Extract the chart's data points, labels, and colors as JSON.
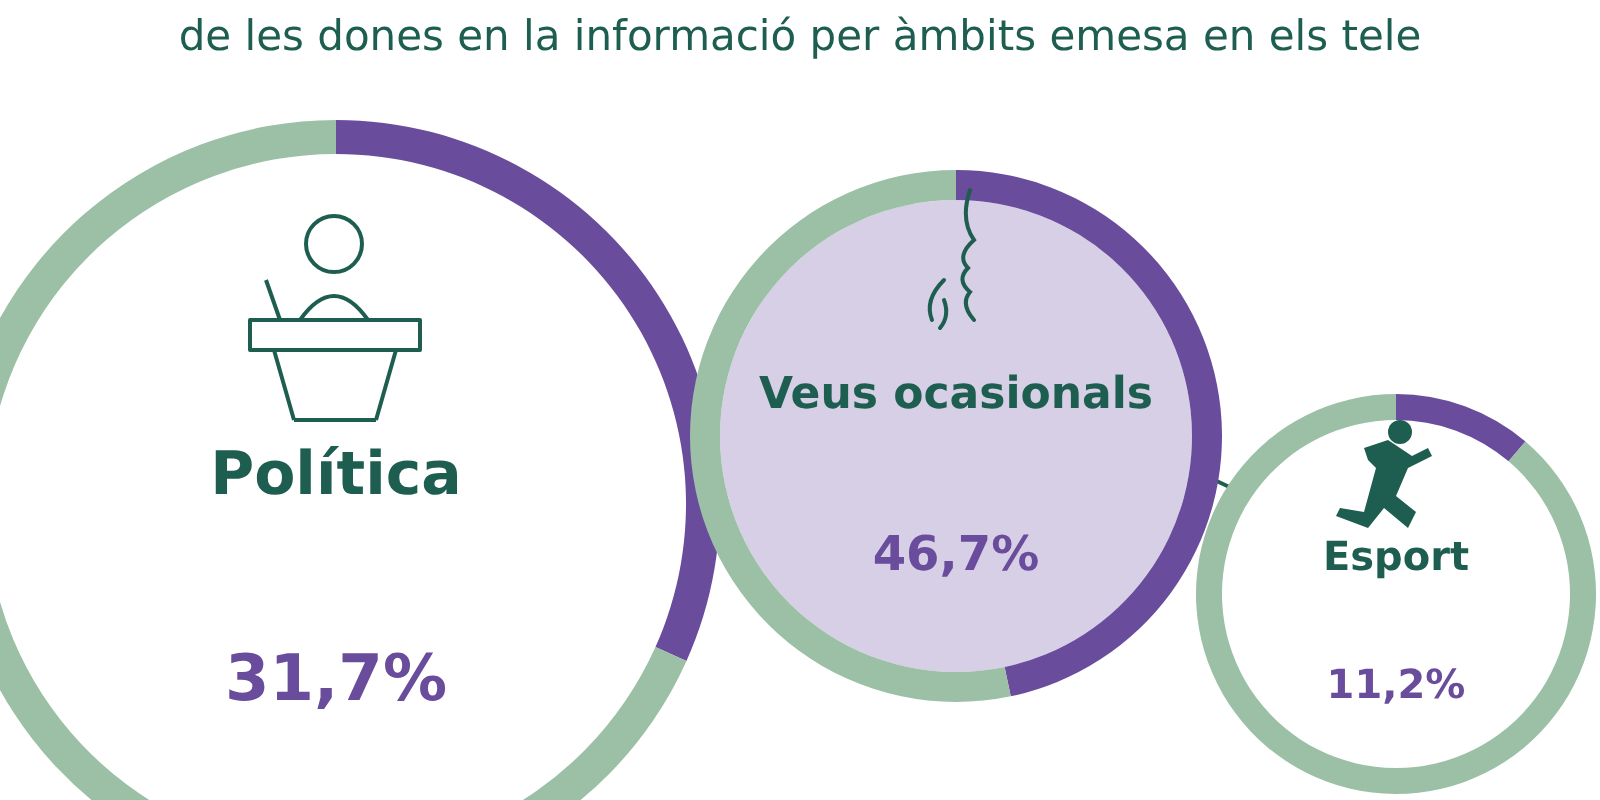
{
  "chart_data": [
    {
      "type": "donut",
      "title": "de les dones en la informació per àmbits emesa en els tele",
      "subtitle": "Política",
      "categories": [
        null,
        null
      ],
      "values": [
        31.7,
        68.3
      ],
      "colors": [
        "#6a4c9c",
        "#9cc0a6"
      ],
      "annotations": [
        "31,7%"
      ]
    },
    {
      "type": "donut",
      "subtitle": "Veus ocasionals",
      "categories": [
        null,
        null
      ],
      "values": [
        46.7,
        53.3
      ],
      "colors": [
        "#6a4c9c",
        "#9cc0a6"
      ],
      "annotations": [
        "46,7%"
      ]
    },
    {
      "type": "donut",
      "subtitle": "Esport",
      "categories": [
        null,
        null
      ],
      "values": [
        11.2,
        88.8
      ],
      "colors": [
        "#6a4c9c",
        "#9cc0a6"
      ],
      "annotations": [
        "11,2%"
      ]
    }
  ]
}
